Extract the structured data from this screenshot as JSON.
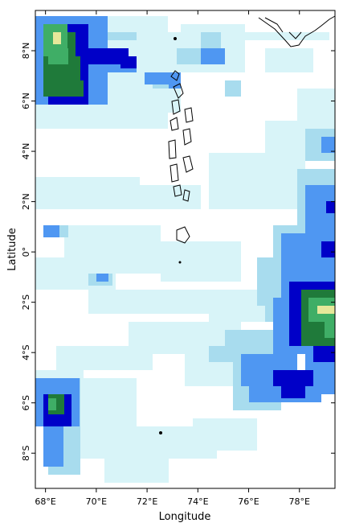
{
  "map": {
    "x_axis_title": "Longitude",
    "y_axis_title": "Latitude",
    "lon_range": [
      67.6,
      79.4
    ],
    "lat_range": [
      -9.4,
      9.6
    ],
    "x_ticks": [
      {
        "value": 68,
        "label": "68°E"
      },
      {
        "value": 70,
        "label": "70°E"
      },
      {
        "value": 72,
        "label": "72°E"
      },
      {
        "value": 74,
        "label": "74°E"
      },
      {
        "value": 76,
        "label": "76°E"
      },
      {
        "value": 78,
        "label": "78°E"
      }
    ],
    "y_ticks": [
      {
        "value": 8,
        "label": "8°N"
      },
      {
        "value": 6,
        "label": "6°N"
      },
      {
        "value": 4,
        "label": "4°N"
      },
      {
        "value": 2,
        "label": "2°N"
      },
      {
        "value": 0,
        "label": "0°"
      },
      {
        "value": -2,
        "label": "2°S"
      },
      {
        "value": -4,
        "label": "4°S"
      },
      {
        "value": -6,
        "label": "6°S"
      },
      {
        "value": -8,
        "label": "8°S"
      }
    ],
    "palette": [
      "#ffffff",
      "#d8f4f8",
      "#a8dcee",
      "#4f97f2",
      "#0000c8",
      "#1f7a3a",
      "#3fae66",
      "#e6e89a"
    ],
    "coast_color": "#000000",
    "axis_color": "#000000"
  }
}
